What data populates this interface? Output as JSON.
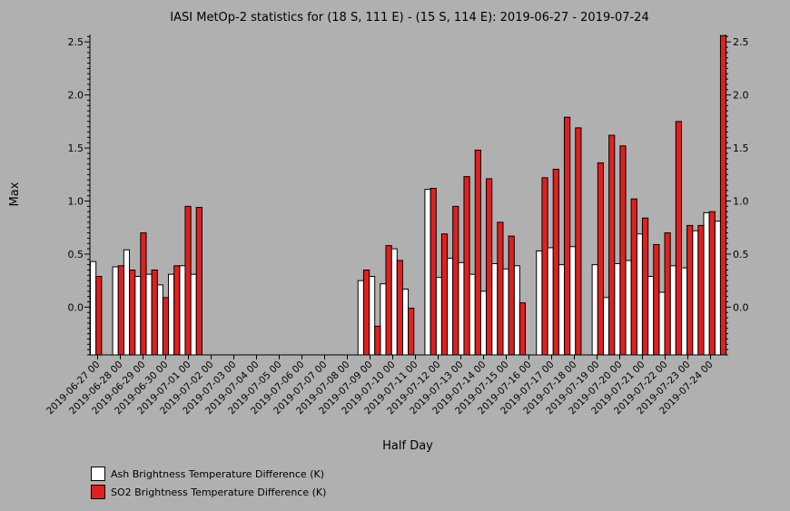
{
  "chart_data": {
    "type": "bar",
    "title": "IASI MetOp-2 statistics for (18 S, 111 E) - (15 S, 114 E): 2019-06-27 - 2019-07-24",
    "xlabel": "Half Day",
    "ylabel": "Max",
    "ylim": [
      -0.45,
      2.57
    ],
    "yticks": [
      0.0,
      0.5,
      1.0,
      1.5,
      2.0,
      2.5
    ],
    "ytick_labels": [
      "0.0",
      "0.5",
      "1.0",
      "1.5",
      "2.0",
      "2.5"
    ],
    "grid": false,
    "legend_position": "bottom-left",
    "x_tick_labels": [
      "2019-06-27 00",
      "2019-06-28 00",
      "2019-06-29 00",
      "2019-06-30 00",
      "2019-07-01 00",
      "2019-07-02 00",
      "2019-07-03 00",
      "2019-07-04 00",
      "2019-07-05 00",
      "2019-07-06 00",
      "2019-07-07 00",
      "2019-07-08 00",
      "2019-07-09 00",
      "2019-07-10 00",
      "2019-07-11 00",
      "2019-07-12 00",
      "2019-07-13 00",
      "2019-07-14 00",
      "2019-07-15 00",
      "2019-07-16 00",
      "2019-07-17 00",
      "2019-07-18 00",
      "2019-07-19 00",
      "2019-07-20 00",
      "2019-07-21 00",
      "2019-07-22 00",
      "2019-07-23 00",
      "2019-07-24 00"
    ],
    "series": [
      {
        "name": "Ash Brightness Temperature Difference (K)",
        "color": "#ffffff",
        "values": [
          0.43,
          null,
          0.38,
          0.54,
          0.29,
          0.31,
          0.21,
          0.31,
          0.39,
          0.31,
          null,
          null,
          null,
          null,
          null,
          null,
          null,
          null,
          null,
          null,
          null,
          null,
          null,
          null,
          0.25,
          0.29,
          0.22,
          0.55,
          0.17,
          null,
          1.11,
          0.28,
          0.46,
          0.42,
          0.31,
          0.15,
          0.41,
          0.36,
          0.39,
          null,
          0.53,
          0.56,
          0.4,
          0.57,
          null,
          0.4,
          0.09,
          0.41,
          0.44,
          0.69,
          0.29,
          0.14,
          0.39,
          0.37,
          0.72,
          0.89,
          0.81
        ]
      },
      {
        "name": "SO2 Brightness Temperature Difference (K)",
        "color": "#e02020",
        "values": [
          0.29,
          null,
          0.39,
          0.35,
          0.7,
          0.35,
          0.09,
          0.39,
          0.95,
          0.94,
          null,
          null,
          null,
          null,
          null,
          null,
          null,
          null,
          null,
          null,
          null,
          null,
          null,
          null,
          0.35,
          -0.18,
          0.58,
          0.44,
          -0.01,
          null,
          1.12,
          0.69,
          0.95,
          1.23,
          1.48,
          1.21,
          0.8,
          0.67,
          0.04,
          null,
          1.22,
          1.3,
          1.79,
          1.69,
          null,
          1.36,
          1.62,
          1.52,
          1.02,
          0.84,
          0.59,
          0.7,
          1.75,
          0.77,
          0.77,
          0.9,
          2.56
        ]
      }
    ]
  }
}
